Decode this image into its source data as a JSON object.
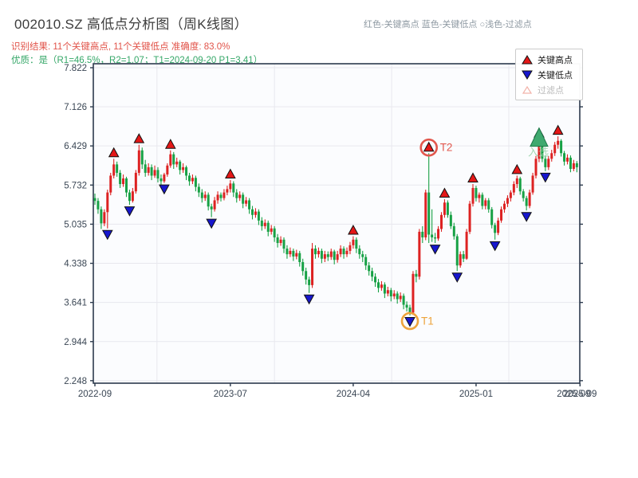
{
  "header": {
    "title": "002010.SZ 高低点分析图（周K线图）",
    "subtitle_result": "识别结果: 11个关键高点, 11个关键低点  准确度: 83.0%",
    "subtitle_quality": "优质：是（R1=46.5%，R2=1.07；T1=2024-09-20 P1=3.41）"
  },
  "color_key": {
    "high": "红色-关键高点",
    "low": "蓝色-关键低点",
    "filter": "○浅色-过滤点"
  },
  "legend": {
    "items": [
      {
        "label": "关键高点",
        "color": "#e41717",
        "shape": "triangle-up"
      },
      {
        "label": "关键低点",
        "color": "#1717cd",
        "shape": "triangle-down"
      },
      {
        "label": "过滤点",
        "color": "#f2b3aa",
        "shape": "triangle-up-open"
      }
    ]
  },
  "chart_data": {
    "type": "candlestick",
    "title": "002010.SZ 高低点分析图（周K线图）",
    "x_unit": "week",
    "x_range": [
      "2022-09",
      "2025-09"
    ],
    "ylim": [
      2.248,
      7.822
    ],
    "y_ticks": [
      7.822,
      7.126,
      6.429,
      5.732,
      5.035,
      4.338,
      3.641,
      2.944,
      2.248
    ],
    "x_ticks": [
      {
        "index": 0,
        "label": "2022-09"
      },
      {
        "index": 43,
        "label": "2023-07"
      },
      {
        "index": 82,
        "label": "2024-04"
      },
      {
        "index": 121,
        "label": "2025-01"
      },
      {
        "index": 154,
        "label": "2025-09"
      }
    ],
    "x_extra_label": {
      "index": 152,
      "label": "2025-09"
    },
    "x_grid_indices": [
      19.7,
      57,
      94.2,
      131.4
    ],
    "colors": {
      "up": "#dd2222",
      "down": "#17a145",
      "grid": "#e8e8ee",
      "spine": "#2c3a4d",
      "tick_label": "#3a4654",
      "plot_bg": "#fbfcfe",
      "high_marker": "#e41717",
      "low_marker": "#1717cd",
      "marker_edge": "#111111"
    },
    "candles": [
      [
        5.5,
        5.58,
        5.38,
        5.45
      ],
      [
        5.45,
        5.5,
        5.22,
        5.3
      ],
      [
        5.3,
        5.35,
        4.95,
        5.05
      ],
      [
        5.05,
        5.3,
        5.0,
        5.25
      ],
      [
        5.25,
        5.65,
        4.96,
        5.6
      ],
      [
        5.6,
        5.95,
        5.55,
        5.9
      ],
      [
        5.9,
        6.2,
        5.85,
        6.1
      ],
      [
        6.1,
        6.15,
        5.88,
        5.95
      ],
      [
        5.95,
        6.0,
        5.68,
        5.75
      ],
      [
        5.75,
        5.92,
        5.7,
        5.85
      ],
      [
        5.85,
        5.88,
        5.52,
        5.6
      ],
      [
        5.6,
        5.65,
        5.38,
        5.45
      ],
      [
        5.45,
        5.68,
        5.42,
        5.62
      ],
      [
        5.62,
        6.0,
        5.58,
        5.95
      ],
      [
        5.95,
        6.45,
        5.9,
        6.35
      ],
      [
        6.35,
        6.4,
        6.02,
        6.1
      ],
      [
        6.1,
        6.18,
        5.88,
        5.95
      ],
      [
        5.95,
        6.12,
        5.9,
        6.05
      ],
      [
        6.05,
        6.1,
        5.82,
        5.9
      ],
      [
        5.9,
        6.08,
        5.86,
        6.0
      ],
      [
        6.0,
        6.05,
        5.78,
        5.85
      ],
      [
        5.85,
        5.92,
        5.72,
        5.8
      ],
      [
        5.8,
        5.95,
        5.77,
        5.92
      ],
      [
        5.92,
        6.12,
        5.88,
        6.08
      ],
      [
        6.08,
        6.35,
        6.04,
        6.28
      ],
      [
        6.28,
        6.32,
        6.02,
        6.1
      ],
      [
        6.1,
        6.22,
        6.05,
        6.15
      ],
      [
        6.15,
        6.18,
        5.92,
        6.0
      ],
      [
        6.0,
        6.12,
        5.95,
        6.05
      ],
      [
        6.05,
        6.08,
        5.82,
        5.9
      ],
      [
        5.9,
        5.95,
        5.72,
        5.8
      ],
      [
        5.8,
        5.92,
        5.75,
        5.86
      ],
      [
        5.86,
        5.9,
        5.62,
        5.7
      ],
      [
        5.7,
        5.76,
        5.52,
        5.6
      ],
      [
        5.6,
        5.66,
        5.42,
        5.5
      ],
      [
        5.5,
        5.62,
        5.45,
        5.56
      ],
      [
        5.56,
        5.6,
        5.28,
        5.35
      ],
      [
        5.35,
        5.4,
        5.16,
        5.3
      ],
      [
        5.3,
        5.52,
        5.26,
        5.46
      ],
      [
        5.46,
        5.62,
        5.4,
        5.56
      ],
      [
        5.56,
        5.6,
        5.44,
        5.5
      ],
      [
        5.5,
        5.66,
        5.46,
        5.6
      ],
      [
        5.6,
        5.72,
        5.55,
        5.66
      ],
      [
        5.66,
        5.82,
        5.6,
        5.76
      ],
      [
        5.76,
        5.8,
        5.52,
        5.6
      ],
      [
        5.6,
        5.66,
        5.42,
        5.5
      ],
      [
        5.5,
        5.62,
        5.45,
        5.56
      ],
      [
        5.56,
        5.6,
        5.32,
        5.4
      ],
      [
        5.4,
        5.52,
        5.35,
        5.46
      ],
      [
        5.46,
        5.5,
        5.22,
        5.3
      ],
      [
        5.3,
        5.36,
        5.12,
        5.2
      ],
      [
        5.2,
        5.32,
        5.15,
        5.26
      ],
      [
        5.26,
        5.3,
        5.02,
        5.1
      ],
      [
        5.1,
        5.16,
        4.92,
        5.0
      ],
      [
        5.0,
        5.12,
        4.95,
        5.06
      ],
      [
        5.06,
        5.1,
        4.82,
        4.9
      ],
      [
        4.9,
        5.02,
        4.85,
        4.96
      ],
      [
        4.96,
        5.0,
        4.72,
        4.8
      ],
      [
        4.8,
        4.86,
        4.62,
        4.7
      ],
      [
        4.7,
        4.82,
        4.65,
        4.76
      ],
      [
        4.76,
        4.8,
        4.52,
        4.6
      ],
      [
        4.6,
        4.66,
        4.42,
        4.5
      ],
      [
        4.5,
        4.62,
        4.45,
        4.56
      ],
      [
        4.56,
        4.6,
        4.38,
        4.46
      ],
      [
        4.46,
        4.58,
        4.41,
        4.52
      ],
      [
        4.52,
        4.56,
        4.28,
        4.36
      ],
      [
        4.36,
        4.42,
        4.12,
        4.2
      ],
      [
        4.2,
        4.26,
        3.96,
        4.05
      ],
      [
        4.05,
        4.1,
        3.81,
        3.95
      ],
      [
        3.95,
        4.7,
        3.9,
        4.6
      ],
      [
        4.6,
        4.66,
        4.42,
        4.5
      ],
      [
        4.5,
        4.62,
        4.44,
        4.56
      ],
      [
        4.56,
        4.6,
        4.34,
        4.42
      ],
      [
        4.42,
        4.56,
        4.36,
        4.5
      ],
      [
        4.5,
        4.55,
        4.38,
        4.45
      ],
      [
        4.45,
        4.6,
        4.4,
        4.55
      ],
      [
        4.55,
        4.58,
        4.32,
        4.4
      ],
      [
        4.4,
        4.56,
        4.35,
        4.5
      ],
      [
        4.5,
        4.66,
        4.45,
        4.6
      ],
      [
        4.6,
        4.64,
        4.42,
        4.5
      ],
      [
        4.5,
        4.62,
        4.45,
        4.56
      ],
      [
        4.56,
        4.72,
        4.5,
        4.66
      ],
      [
        4.66,
        4.82,
        4.6,
        4.76
      ],
      [
        4.76,
        4.8,
        4.52,
        4.6
      ],
      [
        4.6,
        4.66,
        4.42,
        4.5
      ],
      [
        4.5,
        4.56,
        4.36,
        4.45
      ],
      [
        4.45,
        4.5,
        4.22,
        4.3
      ],
      [
        4.3,
        4.36,
        4.12,
        4.2
      ],
      [
        4.2,
        4.26,
        4.02,
        4.1
      ],
      [
        4.1,
        4.16,
        3.92,
        4.0
      ],
      [
        4.0,
        4.06,
        3.82,
        3.9
      ],
      [
        3.9,
        4.02,
        3.85,
        3.96
      ],
      [
        3.96,
        4.0,
        3.72,
        3.8
      ],
      [
        3.8,
        3.92,
        3.75,
        3.86
      ],
      [
        3.86,
        3.9,
        3.66,
        3.75
      ],
      [
        3.75,
        3.86,
        3.7,
        3.8
      ],
      [
        3.8,
        3.84,
        3.62,
        3.7
      ],
      [
        3.7,
        3.82,
        3.65,
        3.76
      ],
      [
        3.76,
        3.8,
        3.52,
        3.6
      ],
      [
        3.6,
        3.66,
        3.48,
        3.55
      ],
      [
        3.55,
        3.6,
        3.41,
        3.46
      ],
      [
        3.46,
        4.2,
        3.42,
        4.15
      ],
      [
        4.15,
        4.22,
        4.0,
        4.1
      ],
      [
        4.1,
        4.95,
        4.05,
        4.9
      ],
      [
        4.9,
        5.0,
        4.7,
        4.8
      ],
      [
        4.8,
        5.65,
        4.75,
        5.6
      ],
      [
        5.6,
        6.3,
        4.7,
        4.85
      ],
      [
        4.85,
        5.3,
        4.72,
        4.8
      ],
      [
        4.8,
        4.88,
        4.7,
        4.78
      ],
      [
        4.78,
        5.0,
        4.74,
        4.95
      ],
      [
        4.95,
        5.25,
        4.9,
        5.2
      ],
      [
        5.2,
        5.48,
        5.15,
        5.42
      ],
      [
        5.42,
        5.46,
        5.15,
        5.2
      ],
      [
        5.2,
        5.26,
        4.95,
        5.0
      ],
      [
        5.0,
        5.06,
        4.76,
        4.82
      ],
      [
        4.82,
        4.86,
        4.2,
        4.3
      ],
      [
        4.3,
        4.55,
        4.26,
        4.5
      ],
      [
        4.5,
        4.56,
        4.36,
        4.42
      ],
      [
        4.42,
        4.95,
        4.4,
        4.9
      ],
      [
        4.9,
        5.45,
        4.86,
        5.4
      ],
      [
        5.4,
        5.75,
        5.35,
        5.68
      ],
      [
        5.68,
        5.72,
        5.44,
        5.5
      ],
      [
        5.5,
        5.6,
        5.42,
        5.56
      ],
      [
        5.56,
        5.6,
        5.3,
        5.36
      ],
      [
        5.36,
        5.5,
        5.3,
        5.46
      ],
      [
        5.46,
        5.5,
        5.24,
        5.3
      ],
      [
        5.3,
        5.34,
        4.96,
        5.02
      ],
      [
        5.02,
        5.06,
        4.76,
        4.88
      ],
      [
        4.88,
        5.15,
        4.84,
        5.1
      ],
      [
        5.1,
        5.35,
        5.06,
        5.3
      ],
      [
        5.3,
        5.45,
        5.24,
        5.4
      ],
      [
        5.4,
        5.55,
        5.34,
        5.5
      ],
      [
        5.5,
        5.64,
        5.44,
        5.6
      ],
      [
        5.6,
        5.8,
        5.55,
        5.75
      ],
      [
        5.75,
        5.9,
        5.68,
        5.85
      ],
      [
        5.85,
        5.88,
        5.56,
        5.62
      ],
      [
        5.62,
        5.66,
        5.44,
        5.5
      ],
      [
        5.5,
        5.54,
        5.28,
        5.36
      ],
      [
        5.36,
        5.65,
        5.32,
        5.6
      ],
      [
        5.6,
        5.95,
        5.56,
        5.9
      ],
      [
        5.9,
        6.25,
        5.85,
        6.2
      ],
      [
        6.2,
        6.55,
        6.14,
        6.45
      ],
      [
        6.45,
        6.5,
        6.14,
        6.2
      ],
      [
        6.2,
        6.26,
        5.98,
        6.05
      ],
      [
        6.05,
        6.25,
        6.0,
        6.2
      ],
      [
        6.2,
        6.36,
        6.15,
        6.3
      ],
      [
        6.3,
        6.5,
        6.25,
        6.45
      ],
      [
        6.45,
        6.6,
        6.38,
        6.52
      ],
      [
        6.52,
        6.55,
        6.24,
        6.3
      ],
      [
        6.3,
        6.34,
        6.08,
        6.15
      ],
      [
        6.15,
        6.28,
        6.1,
        6.22
      ],
      [
        6.22,
        6.26,
        5.96,
        6.02
      ],
      [
        6.02,
        6.18,
        5.98,
        6.12
      ],
      [
        6.12,
        6.16,
        5.96,
        6.05
      ]
    ],
    "key_highs": [
      {
        "index": 6,
        "price": 6.3
      },
      {
        "index": 14,
        "price": 6.55
      },
      {
        "index": 24,
        "price": 6.45
      },
      {
        "index": 43,
        "price": 5.92
      },
      {
        "index": 82,
        "price": 4.92
      },
      {
        "index": 106,
        "price": 6.4
      },
      {
        "index": 111,
        "price": 5.58
      },
      {
        "index": 120,
        "price": 5.85
      },
      {
        "index": 134,
        "price": 6.0
      },
      {
        "index": 141,
        "price": 6.65
      },
      {
        "index": 147,
        "price": 6.7
      }
    ],
    "key_lows": [
      {
        "index": 4,
        "price": 4.86
      },
      {
        "index": 11,
        "price": 5.28
      },
      {
        "index": 22,
        "price": 5.67
      },
      {
        "index": 37,
        "price": 5.06
      },
      {
        "index": 68,
        "price": 3.71
      },
      {
        "index": 100,
        "price": 3.31
      },
      {
        "index": 108,
        "price": 4.6
      },
      {
        "index": 115,
        "price": 4.1
      },
      {
        "index": 127,
        "price": 4.66
      },
      {
        "index": 137,
        "price": 5.18
      },
      {
        "index": 143,
        "price": 5.88
      }
    ],
    "annotations": {
      "t1": {
        "index": 100,
        "price": 3.31,
        "label": "T1",
        "color": "#eda43c"
      },
      "t2": {
        "index": 106,
        "price": 6.4,
        "label": "T2",
        "color": "#e2574d"
      },
      "selected": {
        "index": 141,
        "price": 6.55,
        "label": "入选",
        "fill": "#3fa96f",
        "edge": "#1e7a4a",
        "text_color": "#9ad4ab"
      }
    }
  }
}
